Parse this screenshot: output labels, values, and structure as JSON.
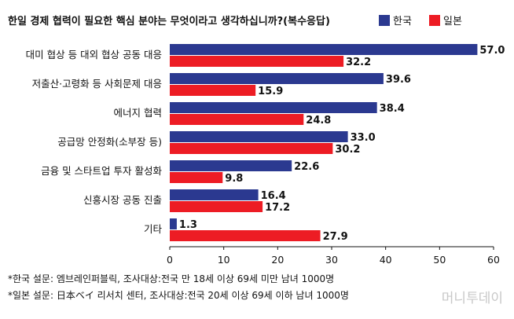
{
  "chart_data": {
    "type": "bar",
    "orientation": "horizontal",
    "title": "한일 경제 협력이 필요한 핵심 분야는 무엇이라고 생각하십니까?(복수응답)",
    "categories": [
      "대미 협상 등 대외 협상 공동 대응",
      "저출산·고령화 등 사회문제 대응",
      "에너지 협력",
      "공급망 안정화(소부장 등)",
      "금융 및 스타트업 투자 활성화",
      "신흥시장 공동 진출",
      "기타"
    ],
    "series": [
      {
        "name": "한국",
        "color": "#2b3990",
        "values": [
          57.0,
          39.6,
          38.4,
          33.0,
          22.6,
          16.4,
          1.3
        ]
      },
      {
        "name": "일본",
        "color": "#ed1c24",
        "values": [
          32.2,
          15.9,
          24.8,
          30.2,
          9.8,
          17.2,
          27.9
        ]
      }
    ],
    "xlim": [
      0,
      60
    ],
    "xticks": [
      "0",
      "10",
      "20",
      "30",
      "40",
      "50",
      "60"
    ],
    "legend": "top-right",
    "grid": false,
    "notes": [
      "*한국 설문: 엠브레인퍼블릭, 조사대상:전국 만 18세 이상 69세 미만 남녀 1000명",
      "*일본 설문: 日本ベイ 리서치 센터, 조사대상:전국 20세 이상 69세 이하 남녀 1000명"
    ]
  },
  "watermark": "머니투데이"
}
